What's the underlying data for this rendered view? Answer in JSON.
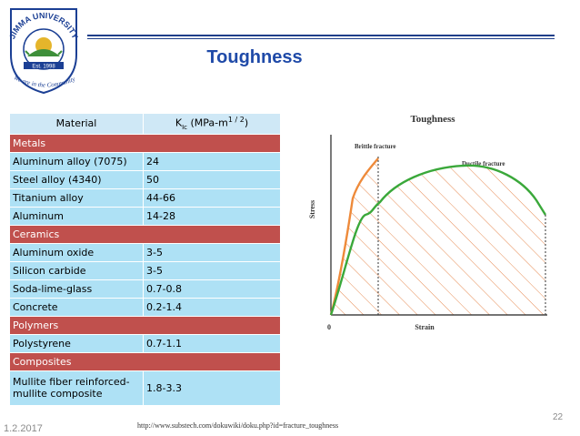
{
  "logo": {
    "name": "JIMMA UNIVERSITY",
    "banner": "Est. 1998",
    "motto": "We are in the Community",
    "colors": {
      "blue": "#1b3f94",
      "green": "#3e8f3a",
      "gold": "#e5b52b"
    }
  },
  "slide": {
    "title": "Toughness"
  },
  "table": {
    "header": {
      "material": "Material",
      "k_symbol": "K",
      "k_sub": "Ic",
      "k_unit": " (MPa-m",
      "k_exp": "1 / 2",
      "k_close": ")"
    },
    "groups": [
      {
        "category": "Metals",
        "rows": [
          {
            "material": "Aluminum alloy (7075)",
            "value": "24"
          },
          {
            "material": "Steel alloy (4340)",
            "value": "50"
          },
          {
            "material": "Titanium alloy",
            "value": "44-66"
          },
          {
            "material": "Aluminum",
            "value": "14-28"
          }
        ]
      },
      {
        "category": "Ceramics",
        "rows": [
          {
            "material": "Aluminum oxide",
            "value": "3-5"
          },
          {
            "material": "Silicon carbide",
            "value": "3-5"
          },
          {
            "material": "Soda-lime-glass",
            "value": "0.7-0.8"
          },
          {
            "material": "Concrete",
            "value": "0.2-1.4"
          }
        ]
      },
      {
        "category": "Polymers",
        "rows": [
          {
            "material": "Polystyrene",
            "value": "0.7-1.1"
          }
        ]
      },
      {
        "category": "Composites",
        "rows": [
          {
            "material": "Mullite fiber reinforced-mullite composite",
            "value": "1.8-3.3"
          }
        ]
      }
    ],
    "colors": {
      "header": "#cfe8f6",
      "category": "#c0504d",
      "row": "#aee1f5"
    }
  },
  "diagram": {
    "title": "Toughness",
    "brittle_label": "Brittle  fracture",
    "ductile_label": "Ductile  fracture",
    "y_label": "Stress",
    "x_label": "Strain",
    "origin_label": "0",
    "colors": {
      "brittle": "#ee8a3a",
      "ductile": "#3aa83a"
    }
  },
  "footer": {
    "date": "1.2.2017",
    "url": "http://www.substech.com/dokuwiki/doku.php?id=fracture_toughness",
    "page": "22"
  }
}
